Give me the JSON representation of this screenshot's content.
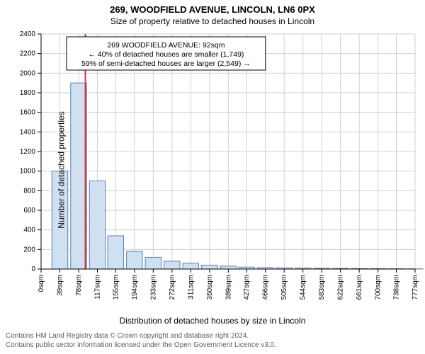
{
  "title_line1": "269, WOODFIELD AVENUE, LINCOLN, LN6 0PX",
  "title_line2": "Size of property relative to detached houses in Lincoln",
  "ylabel": "Number of detached properties",
  "xlabel": "Distribution of detached houses by size in Lincoln",
  "footer_line1": "Contains HM Land Registry data © Crown copyright and database right 2024.",
  "footer_line2": "Contains public sector information licensed under the Open Government Licence v3.0.",
  "chart": {
    "type": "histogram",
    "background_color": "#ffffff",
    "grid_color": "#d0d0d0",
    "axis_color": "#000000",
    "bar_fill": "#cfe0f2",
    "bar_stroke": "#6080b0",
    "marker_color": "#d03030",
    "tick_fontsize": 10,
    "label_fontsize": 12,
    "title_fontsize": 13,
    "ylim": [
      0,
      2400
    ],
    "ytick_step": 200,
    "x_categories": [
      "0sqm",
      "39sqm",
      "78sqm",
      "117sqm",
      "155sqm",
      "194sqm",
      "233sqm",
      "272sqm",
      "311sqm",
      "350sqm",
      "389sqm",
      "427sqm",
      "466sqm",
      "505sqm",
      "544sqm",
      "583sqm",
      "622sqm",
      "661sqm",
      "700sqm",
      "738sqm",
      "777sqm"
    ],
    "x_category_values": [
      0,
      39,
      78,
      117,
      155,
      194,
      233,
      272,
      311,
      350,
      389,
      427,
      466,
      505,
      544,
      583,
      622,
      661,
      700,
      738,
      777
    ],
    "bar_values": [
      0,
      1000,
      1900,
      900,
      340,
      180,
      120,
      80,
      60,
      40,
      30,
      20,
      15,
      12,
      10,
      8,
      6,
      5,
      4,
      3,
      2
    ],
    "marker_x_value": 92,
    "annotation": {
      "lines": [
        "269 WOODFIELD AVENUE: 92sqm",
        "← 40% of detached houses are smaller (1,749)",
        "59% of semi-detached houses are larger (2,549) →"
      ],
      "border_color": "#000000",
      "background_color": "#ffffff",
      "fontsize": 10.5
    }
  }
}
